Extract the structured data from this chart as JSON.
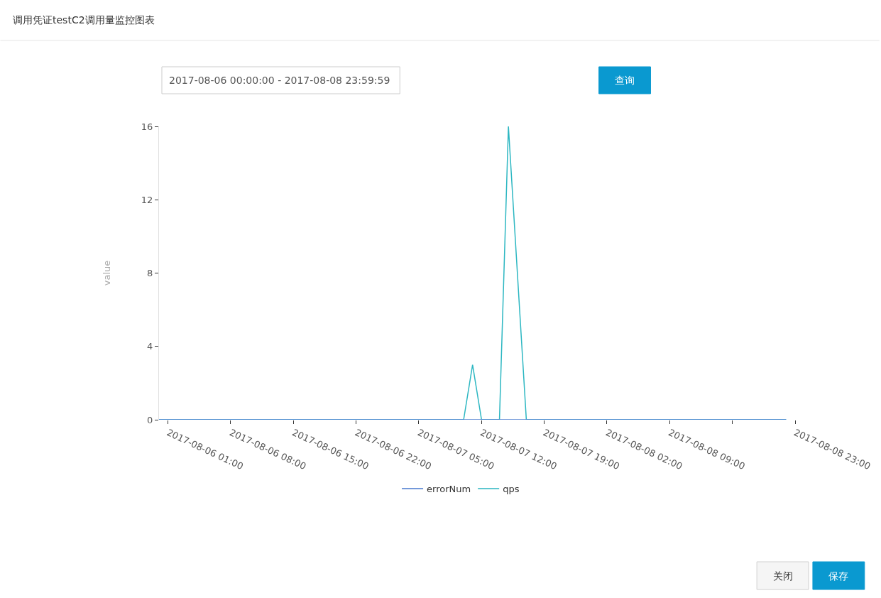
{
  "chart_data": {
    "type": "line",
    "title": "调用凭证testC2调用量监控图表",
    "annotations": [
      "2017-08-06 00:00:00 - 2017-08-08 23:59:59",
      "查询",
      "关闭",
      "保存"
    ],
    "ylabel": "value",
    "series": [
      {
        "name": "errorNum",
        "color": "#4a7bcf",
        "x": [
          "2017-08-06T00:00",
          "2017-08-08T22:00"
        ],
        "values": [
          0,
          0
        ]
      },
      {
        "name": "qps",
        "color": "#2db7c2",
        "x": [
          "2017-08-06T00:00",
          "2017-08-07T10:00",
          "2017-08-07T11:00",
          "2017-08-07T12:00",
          "2017-08-07T14:00",
          "2017-08-07T15:00",
          "2017-08-07T17:00",
          "2017-08-08T22:00"
        ],
        "values": [
          0,
          0,
          3,
          0,
          0,
          16,
          0,
          0
        ]
      }
    ],
    "xlim": [
      "2017-08-06T00:00",
      "2017-08-08T23:00"
    ],
    "xticks": [
      {
        "value": "2017-08-06T01:00",
        "label": "2017-08-06 01:00"
      },
      {
        "value": "2017-08-06T08:00",
        "label": "2017-08-06 08:00"
      },
      {
        "value": "2017-08-06T15:00",
        "label": "2017-08-06 15:00"
      },
      {
        "value": "2017-08-06T22:00",
        "label": "2017-08-06 22:00"
      },
      {
        "value": "2017-08-07T05:00",
        "label": "2017-08-07 05:00"
      },
      {
        "value": "2017-08-07T12:00",
        "label": "2017-08-07 12:00"
      },
      {
        "value": "2017-08-07T19:00",
        "label": "2017-08-07 19:00"
      },
      {
        "value": "2017-08-08T02:00",
        "label": "2017-08-08 02:00"
      },
      {
        "value": "2017-08-08T09:00",
        "label": "2017-08-08 09:00"
      },
      {
        "value": "2017-08-08T16:00",
        "label": null
      },
      {
        "value": "2017-08-08T23:00",
        "label": "2017-08-08 23:00"
      }
    ],
    "ylim": [
      0,
      16
    ],
    "yticks": [
      0,
      4,
      8,
      12,
      16
    ],
    "legend": "bottom",
    "marker": "none",
    "line_style": "solid"
  }
}
